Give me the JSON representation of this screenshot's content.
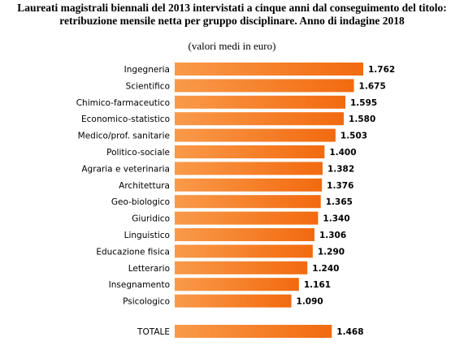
{
  "chart_data": {
    "type": "bar",
    "orientation": "horizontal",
    "title_lines": [
      "Laureati magistrali biennali del 2013 intervistati a cinque anni dal conseguimento del titolo:",
      "retribuzione mensile netta per gruppo disciplinare. Anno di indagine 2018"
    ],
    "subtitle": "(valori medi in euro)",
    "categories": [
      "Ingegneria",
      "Scientifico",
      "Chimico-farmaceutico",
      "Economico-statistico",
      "Medico/prof. sanitarie",
      "Politico-sociale",
      "Agraria e veterinaria",
      "Architettura",
      "Geo-biologico",
      "Giuridico",
      "Linguistico",
      "Educazione fisica",
      "Letterario",
      "Insegnamento",
      "Psicologico"
    ],
    "values": [
      1762,
      1675,
      1595,
      1580,
      1503,
      1400,
      1382,
      1376,
      1365,
      1340,
      1306,
      1290,
      1240,
      1161,
      1090
    ],
    "value_labels": [
      "1.762",
      "1.675",
      "1.595",
      "1.580",
      "1.503",
      "1.400",
      "1.382",
      "1.376",
      "1.365",
      "1.340",
      "1.306",
      "1.290",
      "1.240",
      "1.161",
      "1.090"
    ],
    "total": {
      "label": "TOTALE",
      "value": 1468,
      "value_label": "1.468"
    },
    "bar_color": "#f26a0f",
    "bar_color_light": "#f99a4a",
    "grid": false,
    "legend": "none"
  }
}
